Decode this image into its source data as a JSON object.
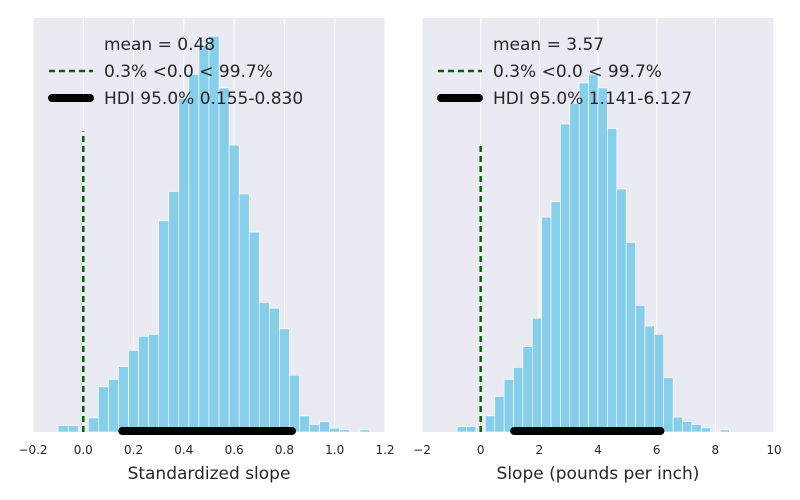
{
  "chart_data": [
    {
      "type": "histogram",
      "xlabel": "Standardized slope",
      "xlim": [
        -0.2,
        1.2
      ],
      "ylim": [
        0,
        0.1
      ],
      "xticks": [
        -0.2,
        0.0,
        0.2,
        0.4,
        0.6,
        0.8,
        1.0,
        1.2
      ],
      "tick_labels": [
        "−0.2",
        "0.0",
        "0.2",
        "0.4",
        "0.6",
        "0.8",
        "1.0",
        "1.2"
      ],
      "grid": true,
      "bar_color": "#87ceeb",
      "bins": [
        [
          -0.1,
          -0.06,
          0.0015
        ],
        [
          -0.06,
          -0.02,
          0.0015
        ],
        [
          -0.02,
          0.02,
          0.0
        ],
        [
          0.02,
          0.06,
          0.0034
        ],
        [
          0.06,
          0.1,
          0.0109
        ],
        [
          0.1,
          0.14,
          0.0127
        ],
        [
          0.14,
          0.18,
          0.0158
        ],
        [
          0.18,
          0.22,
          0.0197
        ],
        [
          0.22,
          0.26,
          0.0231
        ],
        [
          0.26,
          0.3,
          0.0236
        ],
        [
          0.3,
          0.34,
          0.051
        ],
        [
          0.34,
          0.38,
          0.0581
        ],
        [
          0.38,
          0.42,
          0.0806
        ],
        [
          0.42,
          0.46,
          0.0864
        ],
        [
          0.46,
          0.5,
          0.0934
        ],
        [
          0.5,
          0.54,
          0.0956
        ],
        [
          0.54,
          0.58,
          0.0831
        ],
        [
          0.58,
          0.62,
          0.0693
        ],
        [
          0.62,
          0.66,
          0.0575
        ],
        [
          0.66,
          0.7,
          0.0483
        ],
        [
          0.7,
          0.74,
          0.0313
        ],
        [
          0.74,
          0.78,
          0.0299
        ],
        [
          0.78,
          0.82,
          0.0249
        ],
        [
          0.82,
          0.86,
          0.0137
        ],
        [
          0.86,
          0.9,
          0.0039
        ],
        [
          0.9,
          0.94,
          0.0018
        ],
        [
          0.94,
          0.98,
          0.0025
        ],
        [
          0.98,
          1.02,
          0.0009
        ],
        [
          1.02,
          1.06,
          0.0005
        ],
        [
          1.06,
          1.1,
          0.0
        ],
        [
          1.1,
          1.14,
          0.0005
        ]
      ],
      "reference_value": 0.0,
      "reference_height": 0.0726,
      "reference_color": "#006400",
      "hdi": [
        0.155,
        0.83
      ],
      "legend": [
        {
          "kind": "none",
          "text": "mean = 0.48"
        },
        {
          "kind": "dashed",
          "text": "0.3% <0.0 < 99.7%"
        },
        {
          "kind": "thick",
          "text": "HDI 95.0% 0.155-0.830"
        }
      ]
    },
    {
      "type": "histogram",
      "xlabel": "Slope (pounds per inch)",
      "xlim": [
        -2,
        10
      ],
      "ylim": [
        0,
        0.1
      ],
      "xticks": [
        -2,
        0,
        2,
        4,
        6,
        8,
        10
      ],
      "tick_labels": [
        "−2",
        "0",
        "2",
        "4",
        "6",
        "8",
        "10"
      ],
      "grid": true,
      "bar_color": "#87ceeb",
      "bins": [
        [
          -0.8,
          -0.48,
          0.0013
        ],
        [
          -0.48,
          -0.16,
          0.0013
        ],
        [
          -0.16,
          0.16,
          0.0
        ],
        [
          0.16,
          0.48,
          0.0039
        ],
        [
          0.48,
          0.8,
          0.0086
        ],
        [
          0.8,
          1.12,
          0.0127
        ],
        [
          1.12,
          1.44,
          0.0156
        ],
        [
          1.44,
          1.76,
          0.0206
        ],
        [
          1.76,
          2.08,
          0.0275
        ],
        [
          2.08,
          2.4,
          0.0519
        ],
        [
          2.4,
          2.72,
          0.0556
        ],
        [
          2.72,
          3.04,
          0.0744
        ],
        [
          3.04,
          3.36,
          0.0794
        ],
        [
          3.36,
          3.68,
          0.0843
        ],
        [
          3.68,
          4.0,
          0.0864
        ],
        [
          4.0,
          4.32,
          0.0831
        ],
        [
          4.32,
          4.64,
          0.0733
        ],
        [
          4.64,
          4.96,
          0.0587
        ],
        [
          4.96,
          5.28,
          0.0458
        ],
        [
          5.28,
          5.6,
          0.0306
        ],
        [
          5.6,
          5.92,
          0.0256
        ],
        [
          5.92,
          6.24,
          0.0236
        ],
        [
          6.24,
          6.56,
          0.0131
        ],
        [
          6.56,
          6.88,
          0.0036
        ],
        [
          6.88,
          7.2,
          0.0025
        ],
        [
          7.2,
          7.52,
          0.0018
        ],
        [
          7.52,
          7.84,
          0.001
        ],
        [
          7.84,
          8.16,
          0.0
        ],
        [
          8.16,
          8.48,
          0.0005
        ]
      ],
      "reference_value": 0,
      "reference_height": 0.07,
      "reference_color": "#006400",
      "hdi": [
        1.141,
        6.127
      ],
      "legend": [
        {
          "kind": "none",
          "text": "mean = 3.57"
        },
        {
          "kind": "dashed",
          "text": "0.3% <0.0 < 99.7%"
        },
        {
          "kind": "thick",
          "text": "HDI 95.0% 1.141-6.127"
        }
      ]
    }
  ]
}
